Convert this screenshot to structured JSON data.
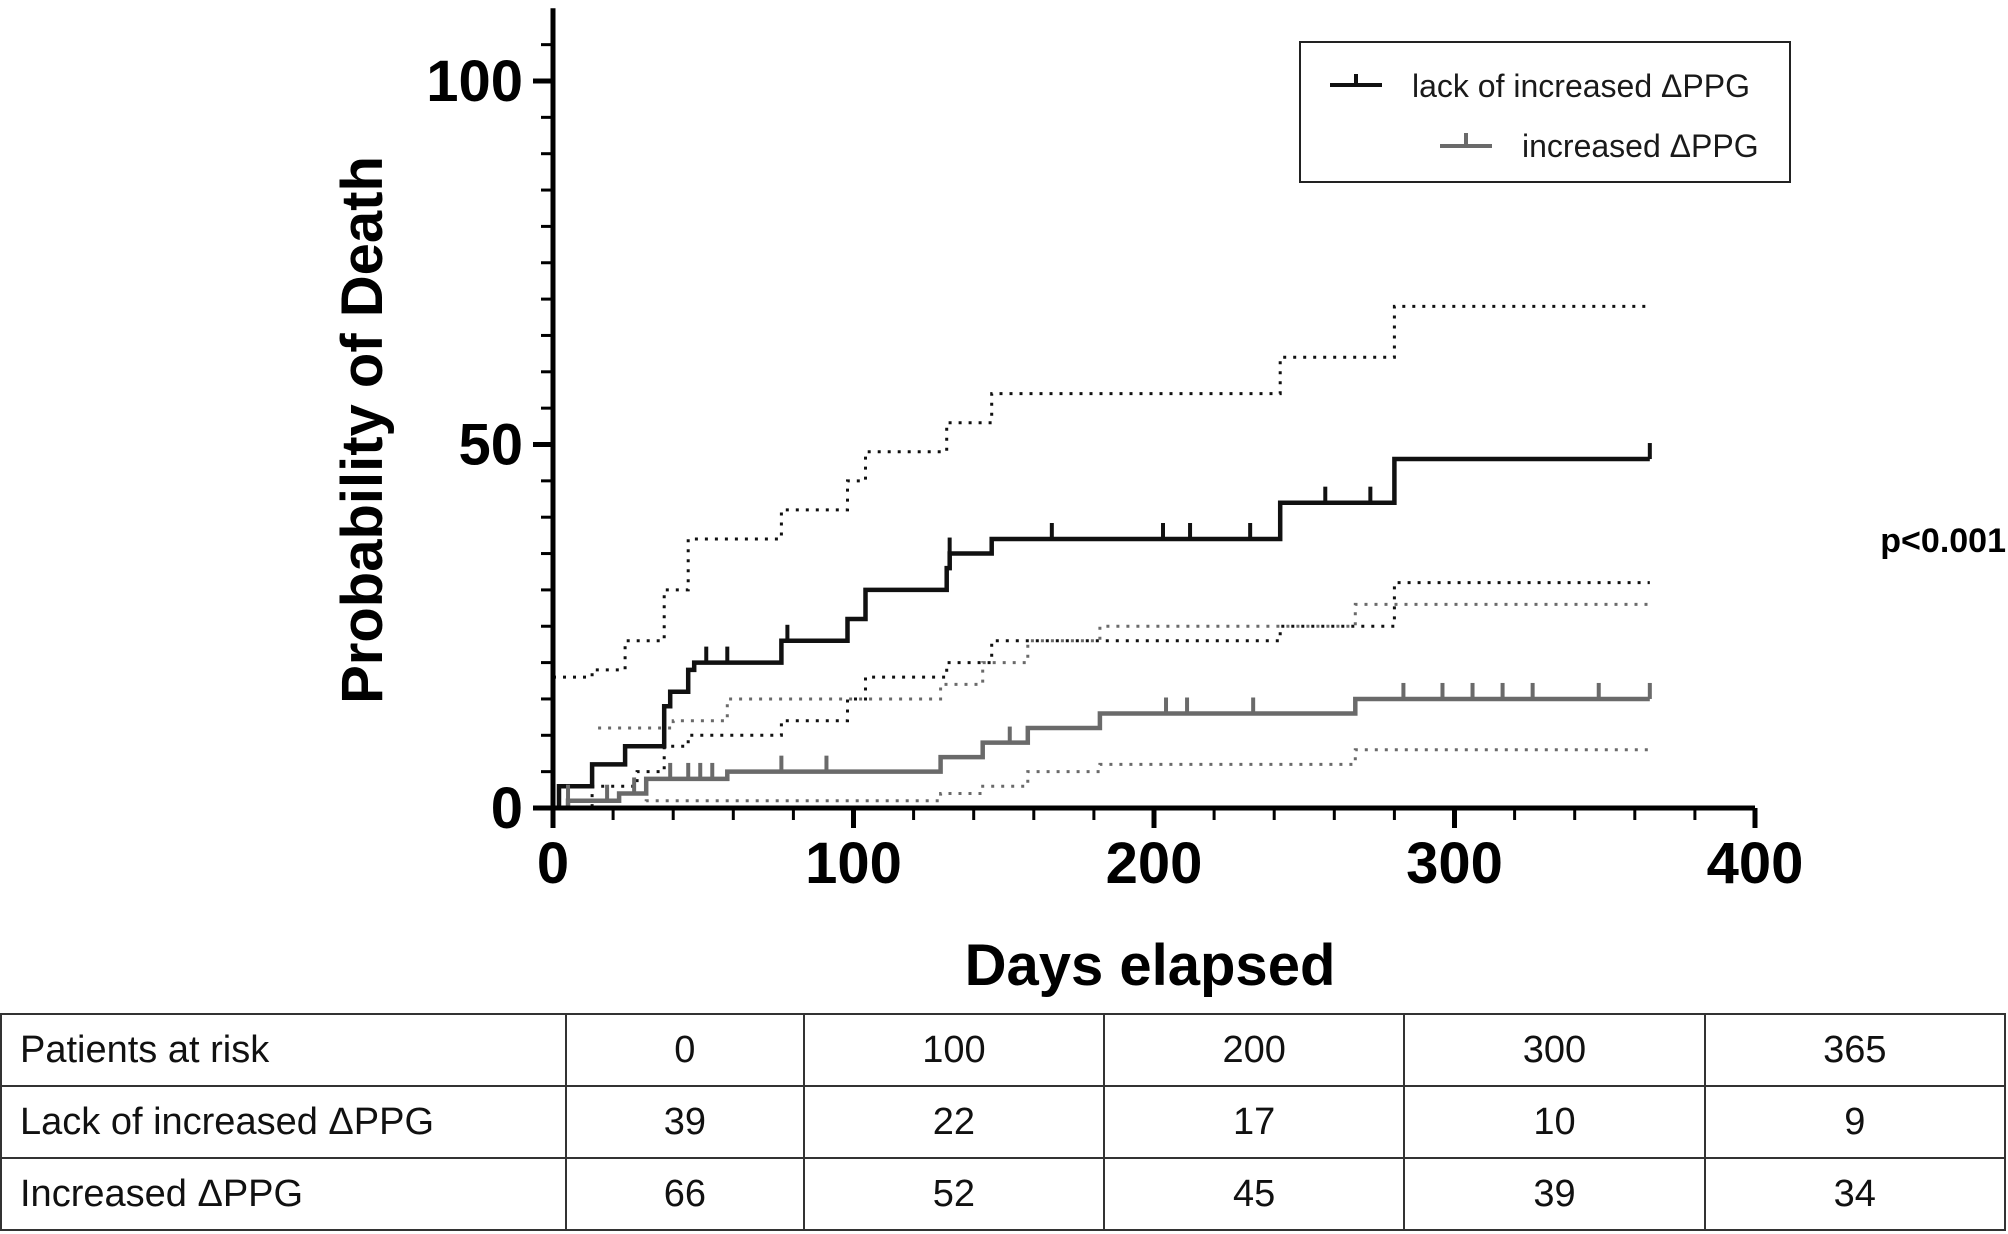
{
  "chart_data": {
    "type": "line",
    "xlabel": "Days elapsed",
    "ylabel": "Probability of Death",
    "xlim": [
      0,
      400
    ],
    "ylim": [
      0,
      110
    ],
    "xticks": [
      0,
      100,
      200,
      300,
      400
    ],
    "yticks": [
      0,
      50,
      100
    ],
    "grid": false,
    "legend_position": "top-right",
    "annotation": "p<0.001",
    "series": [
      {
        "name": "lack of increased ΔPPG",
        "color": "#111111",
        "steps": [
          [
            0,
            0
          ],
          [
            2,
            3
          ],
          [
            13,
            6
          ],
          [
            14,
            6
          ],
          [
            24,
            8.5
          ],
          [
            37,
            14
          ],
          [
            39,
            16
          ],
          [
            45,
            19
          ],
          [
            47,
            20
          ],
          [
            75,
            20
          ],
          [
            76,
            23
          ],
          [
            98,
            26
          ],
          [
            104,
            30
          ],
          [
            131,
            33
          ],
          [
            132,
            35
          ],
          [
            146,
            37
          ],
          [
            241,
            37
          ],
          [
            242,
            42
          ],
          [
            279,
            42
          ],
          [
            280,
            48
          ],
          [
            365,
            48
          ]
        ],
        "censored": [
          [
            51,
            20
          ],
          [
            58,
            20
          ],
          [
            78,
            23
          ],
          [
            132,
            35
          ],
          [
            166,
            37
          ],
          [
            203,
            37
          ],
          [
            212,
            37
          ],
          [
            232,
            37
          ],
          [
            257,
            42
          ],
          [
            272,
            42
          ],
          [
            365,
            48
          ]
        ],
        "ci_lower": [
          [
            0,
            0
          ],
          [
            13,
            3
          ],
          [
            28,
            5
          ],
          [
            37,
            8.5
          ],
          [
            45,
            10
          ],
          [
            75,
            10
          ],
          [
            76,
            12
          ],
          [
            98,
            15
          ],
          [
            104,
            18
          ],
          [
            120,
            18
          ],
          [
            131,
            20
          ],
          [
            146,
            23
          ],
          [
            241,
            23
          ],
          [
            242,
            25
          ],
          [
            279,
            25
          ],
          [
            280,
            31
          ],
          [
            365,
            31
          ]
        ],
        "ci_upper": [
          [
            0,
            18
          ],
          [
            13,
            19
          ],
          [
            24,
            23
          ],
          [
            37,
            30
          ],
          [
            45,
            37
          ],
          [
            75,
            37
          ],
          [
            76,
            41
          ],
          [
            98,
            45
          ],
          [
            104,
            49
          ],
          [
            131,
            53
          ],
          [
            146,
            57
          ],
          [
            241,
            57
          ],
          [
            242,
            62
          ],
          [
            279,
            62
          ],
          [
            280,
            69
          ],
          [
            365,
            69
          ]
        ]
      },
      {
        "name": "increased ΔPPG",
        "color": "#6a6a6a",
        "steps": [
          [
            0,
            0
          ],
          [
            5,
            1
          ],
          [
            9,
            1
          ],
          [
            22,
            2
          ],
          [
            31,
            4
          ],
          [
            40,
            4
          ],
          [
            58,
            5
          ],
          [
            128,
            5
          ],
          [
            129,
            7
          ],
          [
            142,
            7
          ],
          [
            143,
            9
          ],
          [
            157,
            9
          ],
          [
            158,
            11
          ],
          [
            167,
            11
          ],
          [
            182,
            13
          ],
          [
            266,
            13
          ],
          [
            267,
            15
          ],
          [
            365,
            15
          ]
        ],
        "censored": [
          [
            5,
            1
          ],
          [
            18,
            1
          ],
          [
            27,
            2
          ],
          [
            39,
            4
          ],
          [
            45,
            4
          ],
          [
            49,
            4
          ],
          [
            53,
            4
          ],
          [
            76,
            5
          ],
          [
            91,
            5
          ],
          [
            152,
            9
          ],
          [
            204,
            13
          ],
          [
            211,
            13
          ],
          [
            233,
            13
          ],
          [
            283,
            15
          ],
          [
            296,
            15
          ],
          [
            306,
            15
          ],
          [
            316,
            15
          ],
          [
            326,
            15
          ],
          [
            348,
            15
          ],
          [
            365,
            15
          ]
        ],
        "ci_lower": [
          [
            0,
            0
          ],
          [
            30,
            0
          ],
          [
            31,
            1
          ],
          [
            58,
            1
          ],
          [
            128,
            1
          ],
          [
            129,
            2
          ],
          [
            142,
            2
          ],
          [
            143,
            3
          ],
          [
            157,
            3
          ],
          [
            158,
            5
          ],
          [
            182,
            6
          ],
          [
            266,
            6
          ],
          [
            267,
            8
          ],
          [
            365,
            8
          ]
        ],
        "ci_upper": [
          [
            15,
            11
          ],
          [
            31,
            11
          ],
          [
            40,
            12
          ],
          [
            58,
            15
          ],
          [
            128,
            15
          ],
          [
            129,
            17
          ],
          [
            142,
            17
          ],
          [
            143,
            20
          ],
          [
            157,
            20
          ],
          [
            158,
            23
          ],
          [
            182,
            25
          ],
          [
            266,
            25
          ],
          [
            267,
            28
          ],
          [
            365,
            28
          ]
        ]
      }
    ]
  },
  "risk_table": {
    "rows": [
      [
        "Patients at risk",
        "0",
        "100",
        "200",
        "300",
        "365"
      ],
      [
        "Lack of increased ΔPPG",
        "39",
        "22",
        "17",
        "10",
        "9"
      ],
      [
        "Increased  ΔPPG",
        "66",
        "52",
        "45",
        "39",
        "34"
      ]
    ]
  }
}
